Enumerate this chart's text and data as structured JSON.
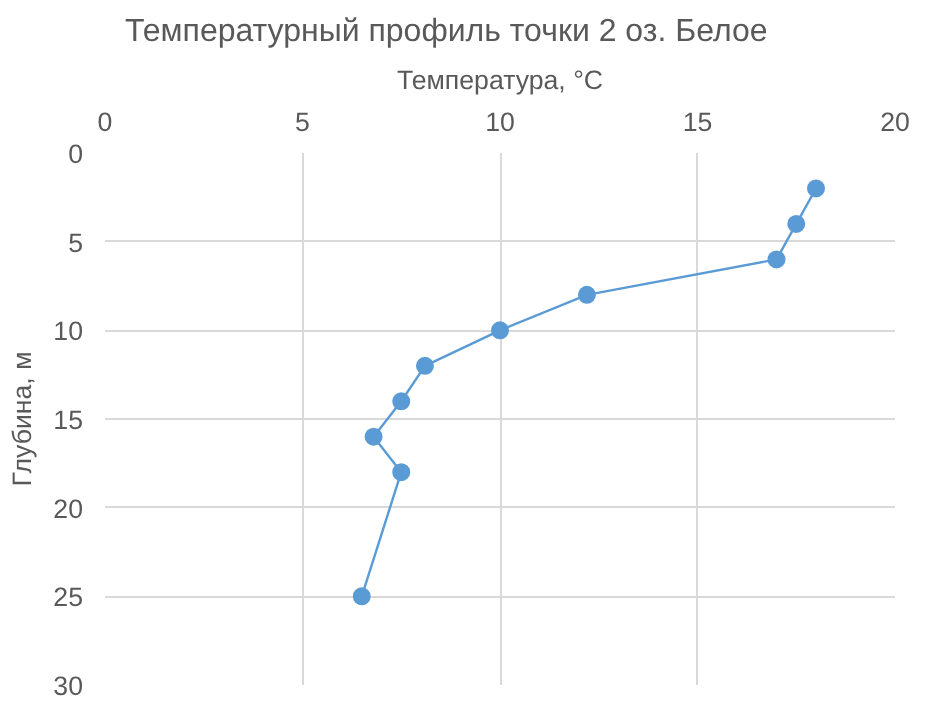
{
  "chart_data": {
    "type": "line",
    "title": "Температурный профиль точки 2  оз. Белое",
    "xlabel": "Температура, °C",
    "ylabel": "Глубина, м",
    "series": [
      {
        "color": "#5b9bd5",
        "x": [
          18.0,
          17.5,
          17.0,
          12.2,
          10.0,
          8.1,
          7.5,
          6.8,
          7.5,
          6.5
        ],
        "values": [
          2,
          4,
          6,
          8,
          10,
          12,
          14,
          16,
          18,
          25
        ]
      }
    ],
    "xlim": [
      0,
      20
    ],
    "xticks": [
      0,
      5,
      10,
      15,
      20
    ],
    "ylim": [
      30,
      0
    ],
    "yticks": [
      0,
      5,
      10,
      15,
      20,
      25,
      30
    ],
    "grid": true,
    "marker": "circle",
    "line_style": "solid"
  }
}
